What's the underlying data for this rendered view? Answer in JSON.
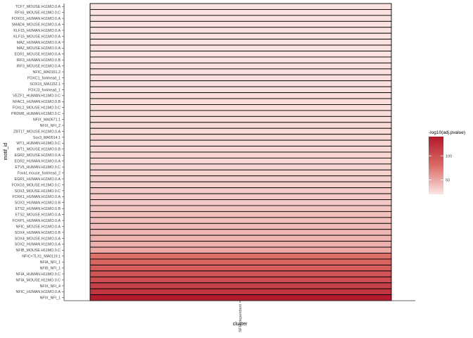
{
  "chart_data": {
    "type": "heatmap",
    "xlabel": "cluster",
    "ylabel": "motif_id",
    "categories_x": [
      "NFIA dependent"
    ],
    "rows": [
      {
        "motif": "TCF7_MOUSE.H11MO.0.A",
        "value": 22
      },
      {
        "motif": "RFX6_MOUSE.H11MO.0.C",
        "value": 22
      },
      {
        "motif": "FOXO1_HUMAN.H11MO.0.A",
        "value": 22
      },
      {
        "motif": "SMAD4_MOUSE.H11MO.0.A",
        "value": 22
      },
      {
        "motif": "KLF15_HUMAN.H11MO.0.A",
        "value": 22
      },
      {
        "motif": "KLF15_MOUSE.H11MO.0.A",
        "value": 22
      },
      {
        "motif": "MAZ_HUMAN.H11MO.0.A",
        "value": 22
      },
      {
        "motif": "MAZ_MOUSE.H11MO.0.A",
        "value": 22
      },
      {
        "motif": "EGR1_MOUSE.H11MO.0.A",
        "value": 22
      },
      {
        "motif": "IRF3_HUMAN.H11MO.0.B",
        "value": 22
      },
      {
        "motif": "IRF3_MOUSE.H11MO.0.A",
        "value": 23
      },
      {
        "motif": "NFIC_MA0161.2",
        "value": 23
      },
      {
        "motif": "FOXC1_forkhead_1",
        "value": 23
      },
      {
        "motif": "SOX15_MA1152.1",
        "value": 23
      },
      {
        "motif": "FOXJ3_forkhead_1",
        "value": 23
      },
      {
        "motif": "VEZF1_HUMAN.H11MO.0.C",
        "value": 24
      },
      {
        "motif": "NFAC1_HUMAN.H11MO.0.B",
        "value": 24
      },
      {
        "motif": "FOXL2_MOUSE.H11MO.0.C",
        "value": 24
      },
      {
        "motif": "PRDM6_HUMAN.H11MO.0.C",
        "value": 25
      },
      {
        "motif": "NFIX_MA0671.1",
        "value": 25
      },
      {
        "motif": "NFIX_NFI_2",
        "value": 26
      },
      {
        "motif": "ZBT17_MOUSE.H11MO.0.A",
        "value": 26
      },
      {
        "motif": "Sox3_MA0514.1",
        "value": 27
      },
      {
        "motif": "WT1_HUMAN.H11MO.0.C",
        "value": 27
      },
      {
        "motif": "WT1_MOUSE.H11MO.0.B",
        "value": 27
      },
      {
        "motif": "EGR2_MOUSE.H11MO.0.A",
        "value": 28
      },
      {
        "motif": "EGR2_HUMAN.H11MO.0.A",
        "value": 28
      },
      {
        "motif": "ETV5_HUMAN.H11MO.0.C",
        "value": 29
      },
      {
        "motif": "Foxk1.mouse_forkhead_2",
        "value": 30
      },
      {
        "motif": "EGR1_HUMAN.H11MO.0.A",
        "value": 31
      },
      {
        "motif": "FOXO3_MOUSE.H11MO.0.C",
        "value": 32
      },
      {
        "motif": "SOX3_MOUSE.H11MO.0.C",
        "value": 33
      },
      {
        "motif": "FOXK1_HUMAN.H11MO.0.A",
        "value": 34
      },
      {
        "motif": "SOX3_HUMAN.H11MO.0.B",
        "value": 35
      },
      {
        "motif": "ETS2_HUMAN.H11MO.0.B",
        "value": 36
      },
      {
        "motif": "ETS2_MOUSE.H11MO.0.A",
        "value": 38
      },
      {
        "motif": "FOXP1_HUMAN.H11MO.0.A",
        "value": 39
      },
      {
        "motif": "NFIC_MOUSE.H11MO.0.A",
        "value": 41
      },
      {
        "motif": "SOX4_HUMAN.H11MO.0.B",
        "value": 43
      },
      {
        "motif": "SOX4_MOUSE.H11MO.0.A",
        "value": 45
      },
      {
        "motif": "SOX2_HUMAN.H11MO.0.A",
        "value": 47
      },
      {
        "motif": "NFIB_MOUSE.H11MO.0.C",
        "value": 50
      },
      {
        "motif": "NFIC+TLX1_MA0119.1",
        "value": 78
      },
      {
        "motif": "NFIA_NFI_1",
        "value": 84
      },
      {
        "motif": "NFIB_NFI_1",
        "value": 90
      },
      {
        "motif": "NFIA_HUMAN.H11MO.0.C",
        "value": 96
      },
      {
        "motif": "NFIA_MOUSE.H11MO.0.C",
        "value": 102
      },
      {
        "motif": "NFIX_NFI_4",
        "value": 110
      },
      {
        "motif": "NFIC_HUMAN.H11MO.0.A",
        "value": 118
      },
      {
        "motif": "NFIX_NFI_1",
        "value": 138
      }
    ],
    "legend": {
      "title": "-log10(adj.pvalue)",
      "ticks": [
        100,
        50
      ],
      "range": [
        20,
        140
      ],
      "placement": "right"
    },
    "colors": {
      "low": "#fbe6e4",
      "high": "#b2182b",
      "cell_border": "#000000"
    },
    "grid": false
  }
}
